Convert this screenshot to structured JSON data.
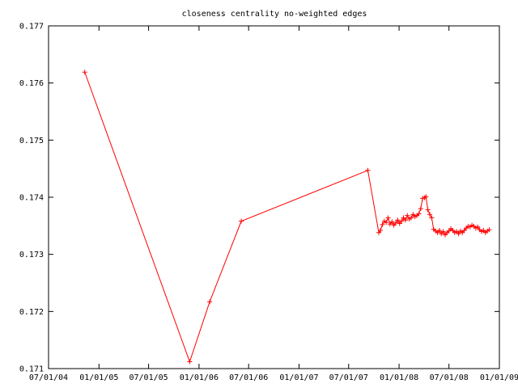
{
  "chart_data": {
    "type": "line",
    "title": "closeness centrality no-weighted edges",
    "xlabel": "",
    "ylabel": "",
    "x_axis_type": "date",
    "xlim": [
      "2004-07-01",
      "2009-01-01"
    ],
    "ylim": [
      0.171,
      0.177
    ],
    "x_ticks": [
      {
        "date": "2004-07-01",
        "label": "07/01/04"
      },
      {
        "date": "2005-01-01",
        "label": "01/01/05"
      },
      {
        "date": "2005-07-01",
        "label": "07/01/05"
      },
      {
        "date": "2006-01-01",
        "label": "01/01/06"
      },
      {
        "date": "2006-07-01",
        "label": "07/01/06"
      },
      {
        "date": "2007-01-01",
        "label": "01/01/07"
      },
      {
        "date": "2007-07-01",
        "label": "07/01/07"
      },
      {
        "date": "2008-01-01",
        "label": "01/01/08"
      },
      {
        "date": "2008-07-01",
        "label": "07/01/08"
      },
      {
        "date": "2009-01-01",
        "label": "01/01/09"
      }
    ],
    "y_ticks": [
      {
        "value": 0.171,
        "label": "0.171"
      },
      {
        "value": 0.172,
        "label": "0.172"
      },
      {
        "value": 0.173,
        "label": "0.173"
      },
      {
        "value": 0.174,
        "label": "0.174"
      },
      {
        "value": 0.175,
        "label": "0.175"
      },
      {
        "value": 0.176,
        "label": "0.176"
      },
      {
        "value": 0.177,
        "label": "0.177"
      }
    ],
    "grid": false,
    "legend": "none",
    "series_color": "#ff0000",
    "marker": "plus",
    "series": [
      {
        "x": [
          "2004-11-10",
          "2005-11-28",
          "2006-02-09",
          "2006-06-04",
          "2007-09-09",
          "2007-10-19",
          "2007-10-25",
          "2007-11-01",
          "2007-11-08",
          "2007-11-15",
          "2007-11-22",
          "2007-11-29",
          "2007-12-06",
          "2007-12-13",
          "2007-12-20",
          "2007-12-27",
          "2008-01-03",
          "2008-01-10",
          "2008-01-17",
          "2008-01-24",
          "2008-01-31",
          "2008-02-07",
          "2008-02-14",
          "2008-02-21",
          "2008-02-28",
          "2008-03-06",
          "2008-03-13",
          "2008-03-20",
          "2008-03-27",
          "2008-04-03",
          "2008-04-08",
          "2008-04-15",
          "2008-04-22",
          "2008-04-29",
          "2008-05-06",
          "2008-05-13",
          "2008-05-20",
          "2008-05-27",
          "2008-06-03",
          "2008-06-10",
          "2008-06-17",
          "2008-06-24",
          "2008-07-01",
          "2008-07-08",
          "2008-07-15",
          "2008-07-22",
          "2008-07-29",
          "2008-08-05",
          "2008-08-12",
          "2008-08-19",
          "2008-08-26",
          "2008-09-02",
          "2008-09-09",
          "2008-09-16",
          "2008-09-23",
          "2008-09-30",
          "2008-10-07",
          "2008-10-14",
          "2008-10-21",
          "2008-10-28",
          "2008-11-04",
          "2008-11-11",
          "2008-11-18",
          "2008-11-25"
        ],
        "y": [
          0.17619,
          0.17112,
          0.17217,
          0.17358,
          0.17447,
          0.17338,
          0.17342,
          0.17352,
          0.17358,
          0.17356,
          0.17364,
          0.17353,
          0.17357,
          0.17351,
          0.17355,
          0.1736,
          0.17354,
          0.17358,
          0.17364,
          0.1736,
          0.17368,
          0.17362,
          0.17364,
          0.1737,
          0.17366,
          0.17368,
          0.17371,
          0.1738,
          0.17398,
          0.17399,
          0.17401,
          0.17378,
          0.1737,
          0.17364,
          0.17344,
          0.17341,
          0.17338,
          0.17342,
          0.17336,
          0.1734,
          0.17334,
          0.17338,
          0.17341,
          0.17345,
          0.17342,
          0.17338,
          0.1734,
          0.17336,
          0.17341,
          0.17338,
          0.17342,
          0.17346,
          0.17349,
          0.17348,
          0.17351,
          0.17349,
          0.17346,
          0.17348,
          0.17343,
          0.1734,
          0.17342,
          0.17338,
          0.17341,
          0.17343
        ]
      }
    ]
  }
}
